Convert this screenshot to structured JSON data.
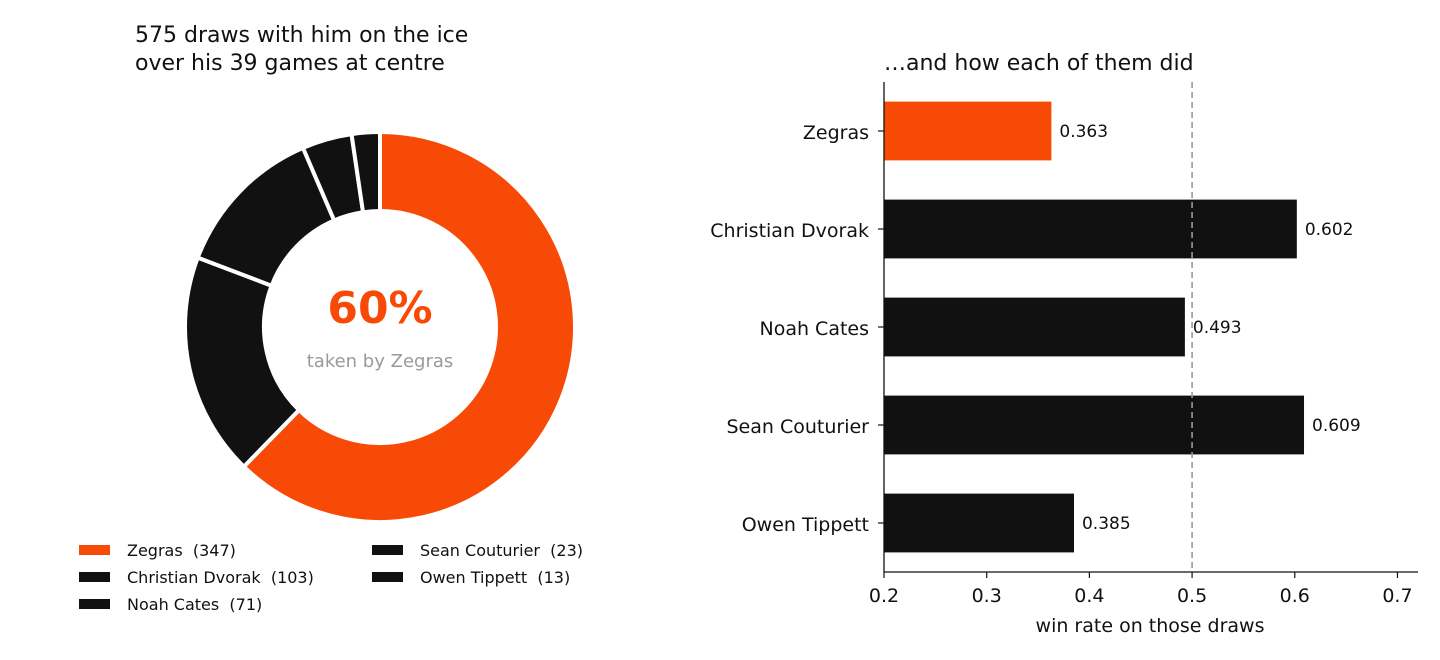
{
  "chart_data": [
    {
      "type": "pie",
      "title_lines": [
        "575 draws with him on the ice",
        "over his 39 games at centre"
      ],
      "center_value": "60%",
      "center_caption": "taken by Zegras",
      "slices": [
        {
          "label": "Zegras",
          "value": 347,
          "legend": "Zegras  (347)",
          "color": "#f74a06"
        },
        {
          "label": "Christian Dvorak",
          "value": 103,
          "legend": "Christian Dvorak  (103)",
          "color": "#111111"
        },
        {
          "label": "Noah Cates",
          "value": 71,
          "legend": "Noah Cates  (71)",
          "color": "#111111"
        },
        {
          "label": "Sean Couturier",
          "value": 23,
          "legend": "Sean Couturier  (23)",
          "color": "#111111"
        },
        {
          "label": "Owen Tippett",
          "value": 13,
          "legend": "Owen Tippett  (13)",
          "color": "#111111"
        }
      ],
      "legend_position": "bottom"
    },
    {
      "type": "bar",
      "orientation": "horizontal",
      "title": "…and how each of them did",
      "categories": [
        "Zegras",
        "Christian Dvorak",
        "Noah Cates",
        "Sean Couturier",
        "Owen Tippett"
      ],
      "values": [
        0.363,
        0.602,
        0.493,
        0.609,
        0.385
      ],
      "value_labels": [
        "0.363",
        "0.602",
        "0.493",
        "0.609",
        "0.385"
      ],
      "colors": [
        "#f74a06",
        "#111111",
        "#111111",
        "#111111",
        "#111111"
      ],
      "xlabel": "win rate on those draws",
      "xlim": [
        0.2,
        0.72
      ],
      "xticks": [
        0.2,
        0.3,
        0.4,
        0.5,
        0.6,
        0.7
      ],
      "xtick_labels": [
        "0.2",
        "0.3",
        "0.4",
        "0.5",
        "0.6",
        "0.7"
      ],
      "reference_line": 0.5,
      "grid": false
    }
  ],
  "colors": {
    "accent": "#f74a06",
    "dark": "#111111",
    "muted": "#9a9a9a",
    "reference": "#999999"
  }
}
